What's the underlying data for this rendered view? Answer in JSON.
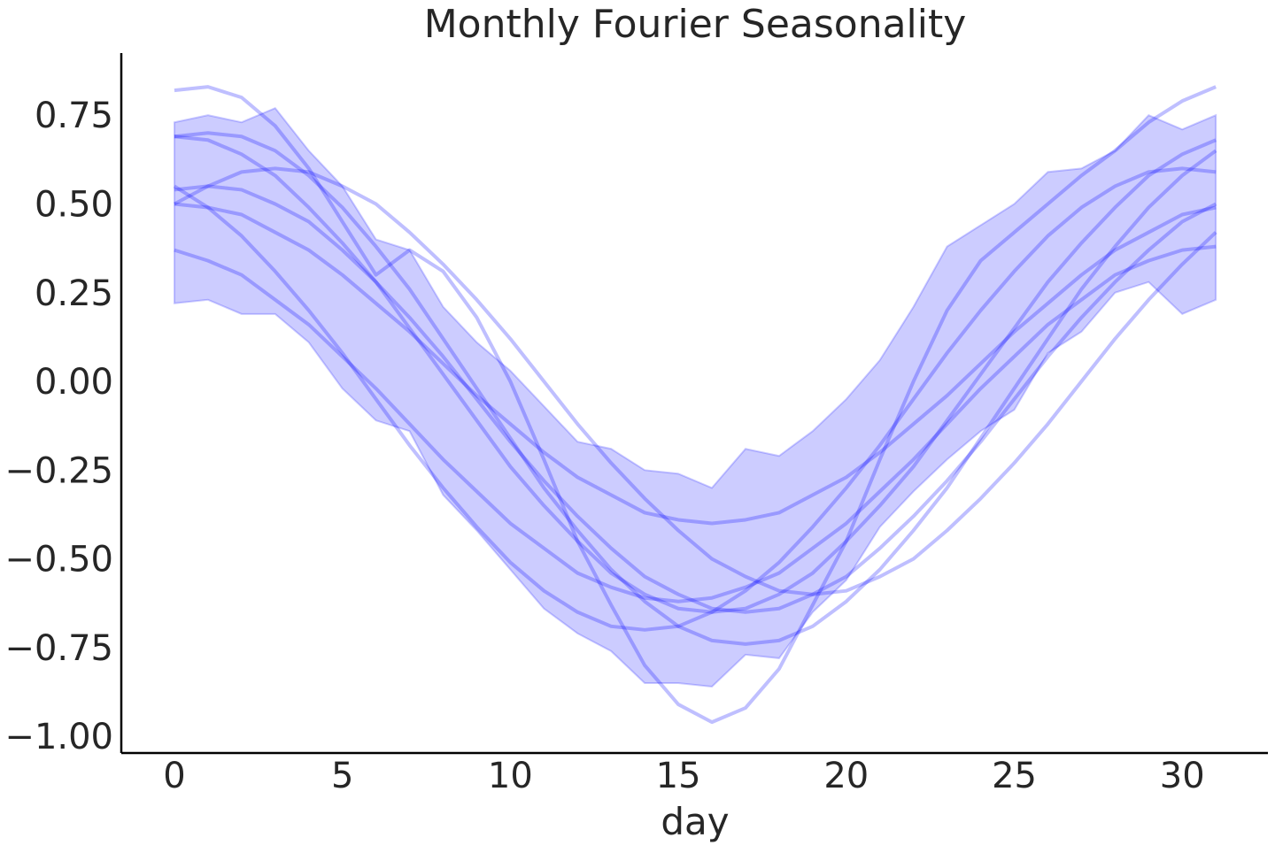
{
  "chart_data": {
    "type": "line",
    "title": "Monthly Fourier Seasonality",
    "xlabel": "day",
    "ylabel": "",
    "xlim": [
      -1.58,
      32.55
    ],
    "ylim": [
      -1.047,
      0.925
    ],
    "xticks": [
      0,
      5,
      10,
      15,
      20,
      25,
      30
    ],
    "xtick_labels": [
      "0",
      "5",
      "10",
      "15",
      "20",
      "25",
      "30"
    ],
    "yticks": [
      -1.0,
      -0.75,
      -0.5,
      -0.25,
      0.0,
      0.25,
      0.5,
      0.75
    ],
    "ytick_labels": [
      "−1.00",
      "−0.75",
      "−0.50",
      "−0.25",
      "0.00",
      "0.25",
      "0.50",
      "0.75"
    ],
    "grid": false,
    "colors": {
      "band": "#0000ff",
      "line": "#0000ff",
      "axis": "#000000",
      "text": "#262626"
    },
    "x": [
      0,
      1,
      2,
      3,
      4,
      5,
      6,
      7,
      8,
      9,
      10,
      11,
      12,
      13,
      14,
      15,
      16,
      17,
      18,
      19,
      20,
      21,
      22,
      23,
      24,
      25,
      26,
      27,
      28,
      29,
      30,
      31
    ],
    "band": {
      "upper": [
        0.73,
        0.75,
        0.73,
        0.77,
        0.65,
        0.55,
        0.4,
        0.37,
        0.21,
        0.11,
        0.03,
        -0.07,
        -0.17,
        -0.19,
        -0.25,
        -0.26,
        -0.3,
        -0.19,
        -0.21,
        -0.14,
        -0.05,
        0.06,
        0.21,
        0.38,
        0.44,
        0.5,
        0.59,
        0.6,
        0.65,
        0.75,
        0.71,
        0.75
      ],
      "lower": [
        0.22,
        0.23,
        0.19,
        0.19,
        0.11,
        -0.02,
        -0.11,
        -0.14,
        -0.32,
        -0.42,
        -0.53,
        -0.64,
        -0.71,
        -0.76,
        -0.85,
        -0.85,
        -0.86,
        -0.77,
        -0.78,
        -0.65,
        -0.56,
        -0.41,
        -0.31,
        -0.22,
        -0.14,
        -0.08,
        0.08,
        0.14,
        0.25,
        0.28,
        0.19,
        0.23
      ]
    },
    "series": [
      {
        "values": [
          0.82,
          0.83,
          0.8,
          0.72,
          0.6,
          0.45,
          0.3,
          0.37,
          0.31,
          0.18,
          0.0,
          -0.22,
          -0.45,
          -0.63,
          -0.8,
          -0.91,
          -0.96,
          -0.92,
          -0.81,
          -0.63,
          -0.45,
          -0.22,
          0.0,
          0.2,
          0.34,
          0.42,
          0.5,
          0.58,
          0.65,
          0.73,
          0.79,
          0.83
        ]
      },
      {
        "values": [
          0.69,
          0.68,
          0.64,
          0.58,
          0.49,
          0.39,
          0.28,
          0.15,
          0.02,
          -0.11,
          -0.24,
          -0.35,
          -0.45,
          -0.54,
          -0.6,
          -0.64,
          -0.65,
          -0.64,
          -0.6,
          -0.54,
          -0.45,
          -0.35,
          -0.24,
          -0.11,
          0.02,
          0.15,
          0.28,
          0.39,
          0.49,
          0.58,
          0.64,
          0.68
        ]
      },
      {
        "values": [
          0.54,
          0.55,
          0.54,
          0.5,
          0.45,
          0.37,
          0.28,
          0.18,
          0.07,
          -0.05,
          -0.17,
          -0.28,
          -0.38,
          -0.47,
          -0.55,
          -0.6,
          -0.64,
          -0.65,
          -0.64,
          -0.6,
          -0.55,
          -0.47,
          -0.38,
          -0.28,
          -0.17,
          -0.05,
          0.07,
          0.18,
          0.28,
          0.37,
          0.45,
          0.5
        ]
      },
      {
        "values": [
          0.55,
          0.49,
          0.41,
          0.31,
          0.2,
          0.08,
          -0.05,
          -0.18,
          -0.3,
          -0.41,
          -0.51,
          -0.59,
          -0.65,
          -0.69,
          -0.7,
          -0.69,
          -0.65,
          -0.59,
          -0.51,
          -0.41,
          -0.3,
          -0.18,
          -0.05,
          0.08,
          0.2,
          0.31,
          0.41,
          0.49,
          0.55,
          0.59,
          0.6,
          0.59
        ]
      },
      {
        "values": [
          0.5,
          0.55,
          0.59,
          0.6,
          0.59,
          0.55,
          0.5,
          0.42,
          0.33,
          0.23,
          0.12,
          0.0,
          -0.12,
          -0.23,
          -0.33,
          -0.42,
          -0.5,
          -0.55,
          -0.59,
          -0.6,
          -0.59,
          -0.55,
          -0.5,
          -0.42,
          -0.33,
          -0.23,
          -0.12,
          0.0,
          0.12,
          0.23,
          0.33,
          0.42
        ]
      },
      {
        "values": [
          0.5,
          0.49,
          0.47,
          0.42,
          0.37,
          0.3,
          0.22,
          0.14,
          0.05,
          -0.04,
          -0.12,
          -0.2,
          -0.27,
          -0.32,
          -0.37,
          -0.39,
          -0.4,
          -0.39,
          -0.37,
          -0.32,
          -0.27,
          -0.2,
          -0.12,
          -0.04,
          0.05,
          0.14,
          0.22,
          0.3,
          0.37,
          0.42,
          0.47,
          0.49
        ]
      },
      {
        "values": [
          0.69,
          0.7,
          0.69,
          0.65,
          0.58,
          0.49,
          0.38,
          0.26,
          0.12,
          -0.02,
          -0.16,
          -0.3,
          -0.42,
          -0.53,
          -0.62,
          -0.69,
          -0.73,
          -0.74,
          -0.73,
          -0.69,
          -0.62,
          -0.53,
          -0.42,
          -0.3,
          -0.16,
          -0.02,
          0.12,
          0.26,
          0.38,
          0.49,
          0.58,
          0.65
        ]
      },
      {
        "values": [
          0.37,
          0.34,
          0.3,
          0.23,
          0.16,
          0.07,
          -0.02,
          -0.12,
          -0.22,
          -0.31,
          -0.4,
          -0.47,
          -0.54,
          -0.58,
          -0.61,
          -0.62,
          -0.61,
          -0.58,
          -0.54,
          -0.47,
          -0.4,
          -0.31,
          -0.22,
          -0.12,
          -0.02,
          0.07,
          0.16,
          0.23,
          0.3,
          0.34,
          0.37,
          0.38
        ]
      }
    ]
  }
}
